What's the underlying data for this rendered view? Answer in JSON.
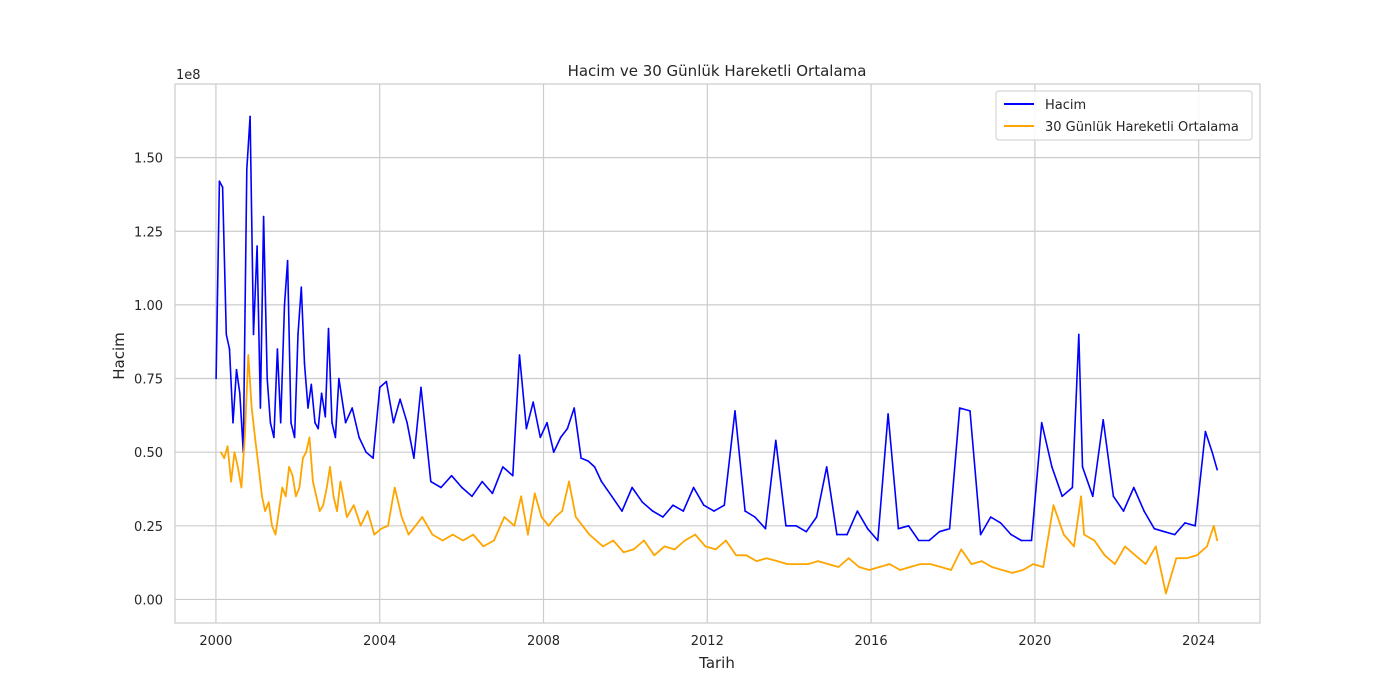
{
  "chart_data": {
    "type": "line",
    "title": "Hacim ve 30 Günlük Hareketli Ortalama",
    "xlabel": "Tarih",
    "ylabel": "Hacim",
    "y_offset_label": "1e8",
    "xlim": [
      "1999-01-01",
      "2025-07-01"
    ],
    "ylim": [
      -8000000,
      175000000
    ],
    "x_ticks": [
      "2000",
      "2004",
      "2008",
      "2012",
      "2016",
      "2020",
      "2024"
    ],
    "y_ticks": [
      "0.00",
      "0.25",
      "0.50",
      "0.75",
      "1.00",
      "1.25",
      "1.50"
    ],
    "y_tick_values": [
      0,
      25000000,
      50000000,
      75000000,
      100000000,
      125000000,
      150000000
    ],
    "grid": true,
    "legend_position": "top-right",
    "colors": {
      "hacim": "#0000ff",
      "ma": "#ffa500",
      "grid": "#cccccc",
      "frame": "#cccccc"
    },
    "series": [
      {
        "name": "Hacim",
        "color": "#0000ff",
        "x": [
          "2000-01-03",
          "2000-02-01",
          "2000-03-01",
          "2000-04-03",
          "2000-05-01",
          "2000-06-01",
          "2000-07-03",
          "2000-08-01",
          "2000-09-01",
          "2000-10-02",
          "2000-11-01",
          "2000-12-01",
          "2001-01-02",
          "2001-02-01",
          "2001-03-01",
          "2001-04-02",
          "2001-05-01",
          "2001-06-01",
          "2001-07-02",
          "2001-08-01",
          "2001-09-04",
          "2001-10-01",
          "2001-11-01",
          "2001-12-03",
          "2002-01-02",
          "2002-02-01",
          "2002-03-01",
          "2002-04-01",
          "2002-05-01",
          "2002-06-03",
          "2002-07-01",
          "2002-08-01",
          "2002-09-03",
          "2002-10-01",
          "2002-11-01",
          "2002-12-02",
          "2003-01-02",
          "2003-03-03",
          "2003-05-01",
          "2003-07-01",
          "2003-09-02",
          "2003-11-03",
          "2004-01-02",
          "2004-03-01",
          "2004-05-03",
          "2004-07-01",
          "2004-09-01",
          "2004-11-01",
          "2005-01-03",
          "2005-04-01",
          "2005-07-01",
          "2005-10-03",
          "2006-01-03",
          "2006-04-03",
          "2006-07-03",
          "2006-10-02",
          "2007-01-03",
          "2007-04-02",
          "2007-06-01",
          "2007-08-01",
          "2007-10-01",
          "2007-12-03",
          "2008-02-01",
          "2008-04-01",
          "2008-06-02",
          "2008-08-01",
          "2008-10-01",
          "2008-12-01",
          "2009-02-02",
          "2009-04-01",
          "2009-06-01",
          "2009-09-01",
          "2009-12-01",
          "2010-03-01",
          "2010-06-01",
          "2010-09-01",
          "2010-12-01",
          "2011-03-01",
          "2011-06-01",
          "2011-09-01",
          "2011-12-01",
          "2012-03-01",
          "2012-06-01",
          "2012-09-04",
          "2012-12-03",
          "2013-03-01",
          "2013-06-03",
          "2013-09-03",
          "2013-12-02",
          "2014-03-03",
          "2014-06-02",
          "2014-09-02",
          "2014-12-01",
          "2015-03-02",
          "2015-06-01",
          "2015-09-01",
          "2015-12-01",
          "2016-03-01",
          "2016-06-01",
          "2016-09-01",
          "2016-12-01",
          "2017-03-01",
          "2017-06-01",
          "2017-09-01",
          "2017-12-01",
          "2018-03-01",
          "2018-06-01",
          "2018-09-04",
          "2018-12-03",
          "2019-03-01",
          "2019-06-03",
          "2019-09-03",
          "2019-12-02",
          "2020-03-02",
          "2020-06-01",
          "2020-09-01",
          "2020-12-01",
          "2021-01-27",
          "2021-03-01",
          "2021-06-01",
          "2021-09-01",
          "2021-12-01",
          "2022-03-01",
          "2022-06-01",
          "2022-09-01",
          "2022-12-01",
          "2023-03-01",
          "2023-06-01",
          "2023-09-01",
          "2023-12-01",
          "2024-03-01",
          "2024-05-01",
          "2024-06-14"
        ],
        "values": [
          75000000,
          142000000,
          140000000,
          90000000,
          85000000,
          60000000,
          78000000,
          70000000,
          50000000,
          146000000,
          164000000,
          90000000,
          120000000,
          65000000,
          130000000,
          75000000,
          60000000,
          55000000,
          85000000,
          60000000,
          100000000,
          115000000,
          60000000,
          55000000,
          90000000,
          106000000,
          80000000,
          65000000,
          73000000,
          60000000,
          58000000,
          70000000,
          62000000,
          92000000,
          60000000,
          55000000,
          75000000,
          60000000,
          65000000,
          55000000,
          50000000,
          48000000,
          72000000,
          74000000,
          60000000,
          68000000,
          60000000,
          48000000,
          72000000,
          40000000,
          38000000,
          42000000,
          38000000,
          35000000,
          40000000,
          36000000,
          45000000,
          42000000,
          83000000,
          58000000,
          67000000,
          55000000,
          60000000,
          50000000,
          55000000,
          58000000,
          65000000,
          48000000,
          47000000,
          45000000,
          40000000,
          35000000,
          30000000,
          38000000,
          33000000,
          30000000,
          28000000,
          32000000,
          30000000,
          38000000,
          32000000,
          30000000,
          32000000,
          64000000,
          30000000,
          28000000,
          24000000,
          54000000,
          25000000,
          25000000,
          23000000,
          28000000,
          45000000,
          22000000,
          22000000,
          30000000,
          24000000,
          20000000,
          63000000,
          24000000,
          25000000,
          20000000,
          20000000,
          23000000,
          24000000,
          65000000,
          64000000,
          22000000,
          28000000,
          26000000,
          22000000,
          20000000,
          20000000,
          60000000,
          45000000,
          35000000,
          38000000,
          90000000,
          45000000,
          35000000,
          61000000,
          35000000,
          30000000,
          38000000,
          30000000,
          24000000,
          23000000,
          22000000,
          26000000,
          25000000,
          57000000,
          50000000,
          44000000
        ],
        "notes": ""
      },
      {
        "name": "30 Günlük Hareketli Ortalama",
        "color": "#ffa500",
        "x": [
          "2000-02-14",
          "2000-03-15",
          "2000-04-14",
          "2000-05-15",
          "2000-06-15",
          "2000-07-14",
          "2000-08-15",
          "2000-09-15",
          "2000-10-16",
          "2000-11-15",
          "2000-12-15",
          "2001-01-16",
          "2001-02-15",
          "2001-03-15",
          "2001-04-16",
          "2001-05-15",
          "2001-06-15",
          "2001-07-16",
          "2001-08-15",
          "2001-09-14",
          "2001-10-15",
          "2001-11-15",
          "2001-12-14",
          "2002-01-15",
          "2002-02-15",
          "2002-03-15",
          "2002-04-15",
          "2002-05-15",
          "2002-06-14",
          "2002-07-15",
          "2002-08-15",
          "2002-09-16",
          "2002-10-15",
          "2002-11-15",
          "2002-12-16",
          "2003-01-15",
          "2003-03-14",
          "2003-05-15",
          "2003-07-15",
          "2003-09-15",
          "2003-11-14",
          "2004-01-15",
          "2004-03-15",
          "2004-05-14",
          "2004-07-15",
          "2004-09-15",
          "2004-11-15",
          "2005-01-14",
          "2005-04-15",
          "2005-07-15",
          "2005-10-14",
          "2006-01-13",
          "2006-04-14",
          "2006-07-14",
          "2006-10-16",
          "2007-01-16",
          "2007-04-16",
          "2007-06-15",
          "2007-08-15",
          "2007-10-15",
          "2007-12-14",
          "2008-02-15",
          "2008-04-15",
          "2008-06-16",
          "2008-08-15",
          "2008-10-15",
          "2008-12-15",
          "2009-02-13",
          "2009-04-15",
          "2009-06-15",
          "2009-09-15",
          "2009-12-15",
          "2010-03-15",
          "2010-06-15",
          "2010-09-15",
          "2010-12-15",
          "2011-03-15",
          "2011-06-15",
          "2011-09-15",
          "2011-12-15",
          "2012-03-15",
          "2012-06-15",
          "2012-09-14",
          "2012-12-14",
          "2013-03-15",
          "2013-06-14",
          "2013-09-16",
          "2013-12-16",
          "2014-03-14",
          "2014-06-16",
          "2014-09-15",
          "2014-12-15",
          "2015-03-16",
          "2015-06-15",
          "2015-09-15",
          "2015-12-15",
          "2016-03-15",
          "2016-06-15",
          "2016-09-15",
          "2016-12-15",
          "2017-03-15",
          "2017-06-15",
          "2017-09-15",
          "2017-12-15",
          "2018-03-15",
          "2018-06-15",
          "2018-09-14",
          "2018-12-14",
          "2019-03-15",
          "2019-06-14",
          "2019-09-16",
          "2019-12-16",
          "2020-03-16",
          "2020-06-15",
          "2020-09-15",
          "2020-12-15",
          "2021-02-16",
          "2021-03-15",
          "2021-06-15",
          "2021-09-15",
          "2021-12-15",
          "2022-03-15",
          "2022-06-15",
          "2022-09-15",
          "2022-12-15",
          "2023-03-15",
          "2023-06-15",
          "2023-09-15",
          "2023-12-15",
          "2024-03-15",
          "2024-05-15",
          "2024-06-14"
        ],
        "values": [
          50000000,
          48000000,
          52000000,
          40000000,
          50000000,
          45000000,
          38000000,
          55000000,
          83000000,
          65000000,
          55000000,
          45000000,
          35000000,
          30000000,
          33000000,
          25000000,
          22000000,
          30000000,
          38000000,
          35000000,
          45000000,
          42000000,
          35000000,
          38000000,
          48000000,
          50000000,
          55000000,
          40000000,
          35000000,
          30000000,
          32000000,
          38000000,
          45000000,
          35000000,
          30000000,
          40000000,
          28000000,
          32000000,
          25000000,
          30000000,
          22000000,
          24000000,
          25000000,
          38000000,
          28000000,
          22000000,
          25000000,
          28000000,
          22000000,
          20000000,
          22000000,
          20000000,
          22000000,
          18000000,
          20000000,
          28000000,
          25000000,
          35000000,
          22000000,
          36000000,
          28000000,
          25000000,
          28000000,
          30000000,
          40000000,
          28000000,
          25000000,
          22000000,
          20000000,
          18000000,
          20000000,
          16000000,
          17000000,
          20000000,
          15000000,
          18000000,
          17000000,
          20000000,
          22000000,
          18000000,
          17000000,
          20000000,
          15000000,
          15000000,
          13000000,
          14000000,
          13000000,
          12000000,
          12000000,
          12000000,
          13000000,
          12000000,
          11000000,
          14000000,
          11000000,
          10000000,
          11000000,
          12000000,
          10000000,
          11000000,
          12000000,
          12000000,
          11000000,
          10000000,
          17000000,
          12000000,
          13000000,
          11000000,
          10000000,
          9000000,
          10000000,
          12000000,
          11000000,
          32000000,
          22000000,
          18000000,
          35000000,
          22000000,
          20000000,
          15000000,
          12000000,
          18000000,
          15000000,
          12000000,
          18000000,
          2000000,
          14000000,
          14000000,
          15000000,
          18000000,
          25000000,
          20000000
        ],
        "notes": ""
      }
    ]
  }
}
